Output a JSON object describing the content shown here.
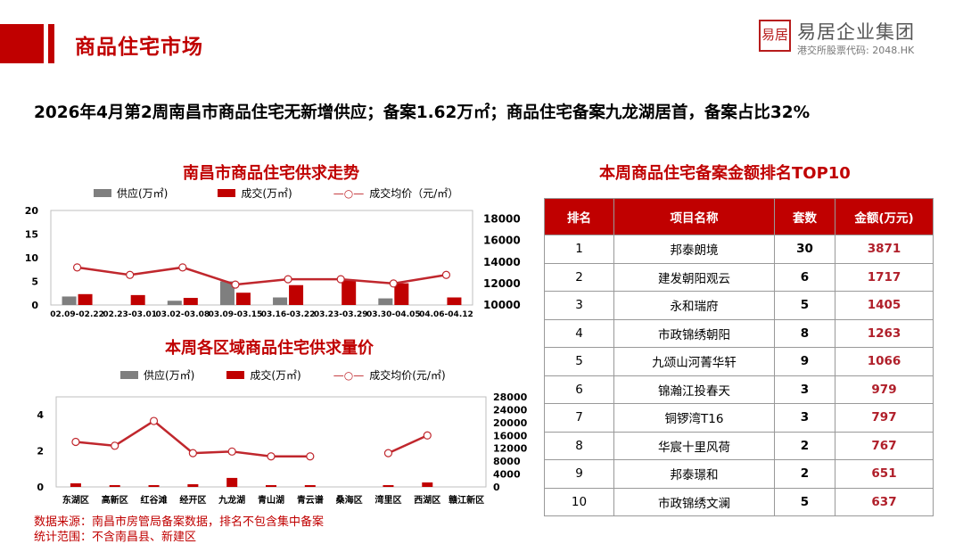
{
  "header": {
    "title": "商品住宅市场",
    "logo_mark": "易居",
    "logo_name": "易居企业集团",
    "logo_sub": "港交所股票代码: 2048.HK"
  },
  "headline": "2026年4月第2周南昌市商品住宅无新增供应；备案1.62万㎡；商品住宅备案九龙湖居首，备案占比32%",
  "colors": {
    "accent": "#c00000",
    "supply": "#7f7f7f",
    "deal": "#c00000",
    "price": "#c0272d"
  },
  "chart_data": [
    {
      "type": "bar+line",
      "title": "南昌市商品住宅供求走势",
      "legend": [
        "供应(万㎡)",
        "成交(万㎡)",
        "成交均价（元/㎡）"
      ],
      "categories": [
        "02.09-02.22",
        "02.23-03.01",
        "03.02-03.08",
        "03.09-03.15",
        "03.16-03.22",
        "03.23-03.29",
        "03.30-04.05",
        "04.06-04.12"
      ],
      "series": [
        {
          "name": "供应(万㎡)",
          "values": [
            1.8,
            0,
            0.9,
            5.0,
            1.6,
            0,
            1.4,
            0
          ]
        },
        {
          "name": "成交(万㎡)",
          "values": [
            2.3,
            2.1,
            1.5,
            2.6,
            4.2,
            5.2,
            4.6,
            1.6
          ]
        },
        {
          "name": "成交均价（元/㎡）",
          "values": [
            13500,
            12800,
            13500,
            11900,
            12400,
            12400,
            12000,
            12800
          ]
        }
      ],
      "ylim": [
        0,
        20
      ],
      "yticks": [
        0,
        5,
        10,
        15,
        20
      ],
      "y2lim": [
        10000,
        18800
      ],
      "y2ticks": [
        10000,
        12000,
        14000,
        16000,
        18000
      ]
    },
    {
      "type": "bar+line",
      "title": "本周各区域商品住宅供求量价",
      "legend": [
        "供应(万㎡)",
        "成交(万㎡)",
        "成交均价(元/㎡)"
      ],
      "categories": [
        "东湖区",
        "高新区",
        "红谷滩",
        "经开区",
        "九龙湖",
        "青山湖",
        "青云谱",
        "桑海区",
        "湾里区",
        "西湖区",
        "赣江新区"
      ],
      "series": [
        {
          "name": "供应(万㎡)",
          "values": [
            0,
            0,
            0,
            0,
            0,
            0,
            0,
            0,
            0,
            0,
            0
          ]
        },
        {
          "name": "成交(万㎡)",
          "values": [
            0.2,
            0.1,
            0.1,
            0.15,
            0.5,
            0.1,
            0.1,
            0,
            0.1,
            0.25,
            0
          ]
        },
        {
          "name": "成交均价(元/㎡)",
          "values": [
            14000,
            12800,
            20500,
            10500,
            11000,
            9500,
            9500,
            null,
            10500,
            16000,
            null
          ]
        }
      ],
      "ylim": [
        0,
        5
      ],
      "yticks": [
        0,
        2,
        4
      ],
      "y2lim": [
        0,
        28000
      ],
      "y2ticks": [
        0,
        4000,
        8000,
        12000,
        16000,
        20000,
        24000,
        28000
      ]
    }
  ],
  "table": {
    "title": "本周商品住宅备案金额排名TOP10",
    "headers": [
      "排名",
      "项目名称",
      "套数",
      "金额(万元)"
    ],
    "rows": [
      [
        "1",
        "邦泰朗境",
        "30",
        "3871"
      ],
      [
        "2",
        "建发朝阳观云",
        "6",
        "1717"
      ],
      [
        "3",
        "永和瑞府",
        "5",
        "1405"
      ],
      [
        "4",
        "市政锦绣朝阳",
        "8",
        "1263"
      ],
      [
        "5",
        "九颂山河菁华轩",
        "9",
        "1066"
      ],
      [
        "6",
        "锦瀚江投春天",
        "3",
        "979"
      ],
      [
        "7",
        "铜锣湾T16",
        "3",
        "797"
      ],
      [
        "8",
        "华宸十里风荷",
        "2",
        "767"
      ],
      [
        "9",
        "邦泰璟和",
        "2",
        "651"
      ],
      [
        "10",
        "市政锦绣文澜",
        "5",
        "637"
      ]
    ]
  },
  "footer": {
    "source": "数据来源：南昌市房管局备案数据，排名不包含集中备案",
    "scope": "统计范围：不含南昌县、新建区"
  }
}
